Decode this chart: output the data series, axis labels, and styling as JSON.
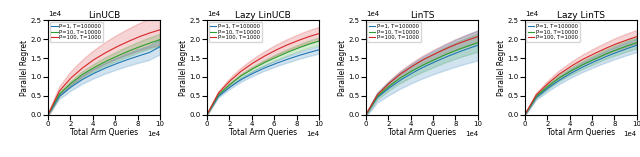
{
  "titles": [
    "LinUCB",
    "Lazy LinUCB",
    "LinTS",
    "Lazy LinTS"
  ],
  "xlabel": "Total Arm Queries",
  "ylabel": "Parallel Regret",
  "xlim": [
    0,
    100000
  ],
  "ylim": [
    0,
    25000
  ],
  "legend_labels": [
    "P=1, T=100000",
    "P=10, T=10000",
    "P=100, T=1000"
  ],
  "line_colors": [
    "#1f77b4",
    "#2ca02c",
    "#d62728"
  ],
  "configs": [
    {
      "yb": [
        0,
        4800,
        7200,
        9200,
        10800,
        12200,
        13400,
        14500,
        15500,
        16400,
        18000
      ],
      "yg": [
        0,
        5400,
        8200,
        10500,
        12300,
        13900,
        15300,
        16600,
        17800,
        18900,
        19900
      ],
      "yr": [
        0,
        6200,
        9600,
        12200,
        14400,
        16200,
        17800,
        19200,
        20500,
        21600,
        22500
      ],
      "std_b": 500,
      "std_g": 400,
      "std_r": 1000
    },
    {
      "yb": [
        0,
        4800,
        7200,
        9200,
        10800,
        12200,
        13400,
        14500,
        15500,
        16400,
        17200
      ],
      "yg": [
        0,
        5200,
        7900,
        10200,
        12000,
        13600,
        15000,
        16300,
        17500,
        18600,
        19500
      ],
      "yr": [
        0,
        5600,
        8800,
        11400,
        13500,
        15300,
        16900,
        18300,
        19500,
        20600,
        21500
      ],
      "std_b": 250,
      "std_g": 250,
      "std_r": 450
    },
    {
      "yb": [
        0,
        4500,
        6900,
        9000,
        10800,
        12400,
        13800,
        15100,
        16300,
        17400,
        18400
      ],
      "yg": [
        0,
        4800,
        7400,
        9600,
        11400,
        13000,
        14400,
        15800,
        17000,
        18100,
        19100
      ],
      "yr": [
        0,
        5200,
        8100,
        10600,
        12600,
        14400,
        15900,
        17300,
        18600,
        19700,
        20700
      ],
      "std_b": 1000,
      "std_g": 600,
      "std_r": 400
    },
    {
      "yb": [
        0,
        4500,
        6900,
        9000,
        10800,
        12400,
        13800,
        15100,
        16300,
        17400,
        18400
      ],
      "yg": [
        0,
        4800,
        7400,
        9600,
        11400,
        13000,
        14400,
        15800,
        17000,
        18100,
        19100
      ],
      "yr": [
        0,
        5200,
        8100,
        10600,
        12600,
        14400,
        15900,
        17300,
        18600,
        19700,
        20700
      ],
      "std_b": 450,
      "std_g": 380,
      "std_r": 450
    }
  ]
}
